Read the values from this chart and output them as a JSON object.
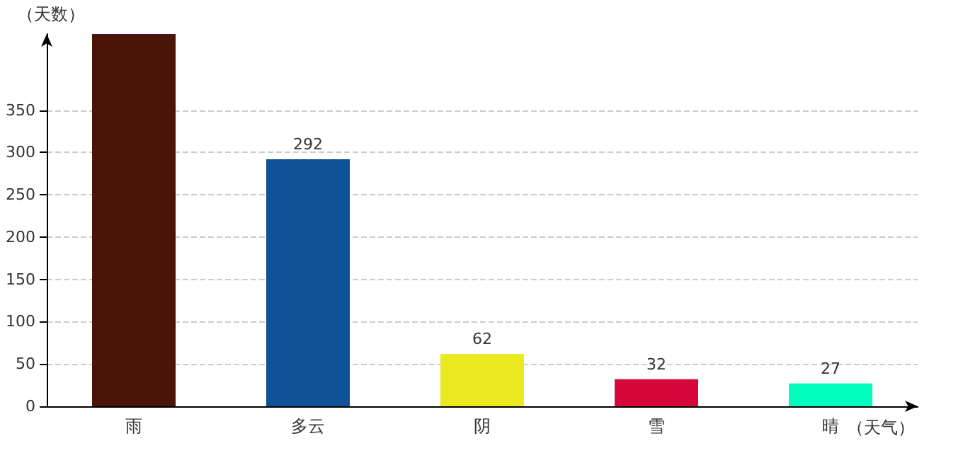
{
  "chart_data": {
    "type": "bar",
    "xlabel": "（天气）",
    "ylabel": "（天数）",
    "categories": [
      "雨",
      "多云",
      "阴",
      "雪",
      "晴"
    ],
    "values": [
      440,
      292,
      62,
      32,
      27
    ],
    "colors": [
      "#4a1508",
      "#0f5298",
      "#ebe920",
      "#d6083b",
      "#00ffbe"
    ],
    "value_labels": [
      null,
      "292",
      "62",
      "32",
      "27"
    ],
    "ylim": [
      0,
      440
    ],
    "yticks": [
      0,
      50,
      100,
      150,
      200,
      250,
      300,
      350
    ],
    "grid": "y"
  }
}
